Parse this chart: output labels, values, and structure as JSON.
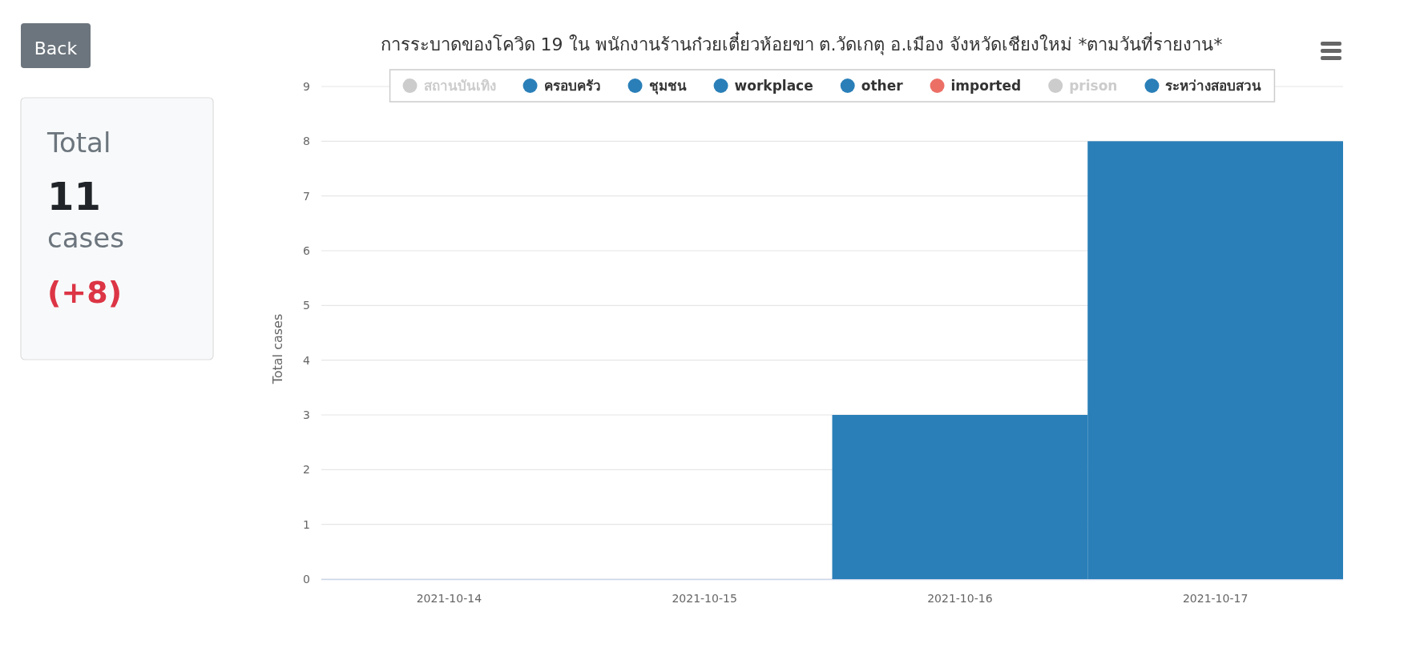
{
  "chart_data": {
    "type": "bar",
    "title": "การระบาดของโควิด 19 ใน พนักงานร้านก๋วยเตี๋ยวห้อยขา ต.วัดเกตุ อ.เมือง จังหวัดเชียงใหม่ *ตามวันที่รายงาน*",
    "ylabel": "Total cases",
    "categories": [
      "2021-10-14",
      "2021-10-15",
      "2021-10-16",
      "2021-10-17"
    ],
    "stacked": true,
    "series": [
      {
        "name": "ระหว่างสอบสวน",
        "color": "#2a7fb8",
        "values": [
          0,
          0,
          3,
          6
        ]
      },
      {
        "name": "prison",
        "color": "#cccccc",
        "values": [
          null,
          null,
          null,
          null
        ]
      },
      {
        "name": "imported",
        "color": "#ec6f66",
        "values": [
          null,
          null,
          null,
          null
        ]
      },
      {
        "name": "other",
        "color": "#2a7fb8",
        "values": [
          null,
          null,
          null,
          null
        ]
      },
      {
        "name": "workplace",
        "color": "#2a7fb8",
        "values": [
          null,
          null,
          null,
          null
        ]
      },
      {
        "name": "ชุมชน",
        "color": "#2a7fb8",
        "values": [
          null,
          null,
          null,
          null
        ]
      },
      {
        "name": "ครอบครัว",
        "color": "#2a7fb8",
        "values": [
          null,
          null,
          null,
          2
        ]
      },
      {
        "name": "สถานบันเทิง",
        "color": "#cccccc",
        "values": [
          null,
          null,
          null,
          null
        ]
      }
    ],
    "ylim": [
      0,
      9
    ],
    "yticks": [
      0,
      1,
      2,
      3,
      4,
      5,
      6,
      7,
      8,
      9
    ],
    "grid": "y",
    "legend": "top",
    "annotations": [
      "Back",
      "Total",
      "11",
      "cases",
      "(+8)"
    ]
  }
}
